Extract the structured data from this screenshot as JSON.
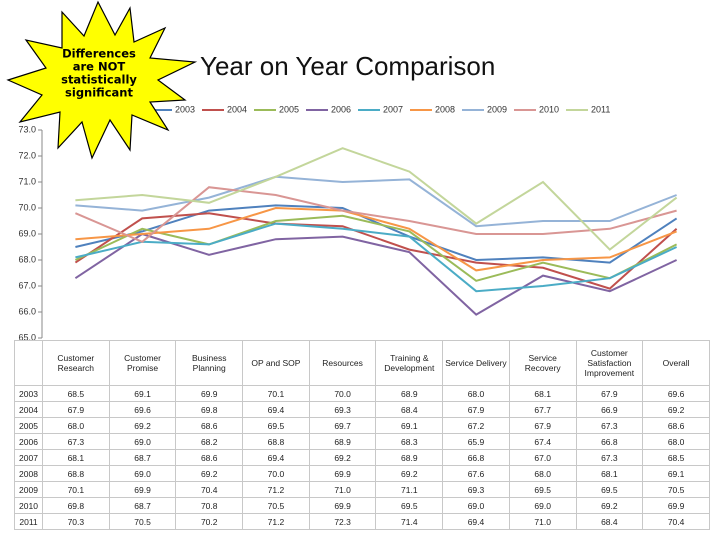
{
  "note": [
    "Differences",
    "are NOT",
    "statistically",
    "significant"
  ],
  "chart_data": {
    "type": "line",
    "title": "Year on Year Comparison",
    "categories": [
      "Customer Research",
      "Customer Promise",
      "Business Planning",
      "OP and SOP",
      "Resources",
      "Training & Development",
      "Service Delivery",
      "Service Recovery",
      "Customer Satisfaction Improvement",
      "Overall"
    ],
    "ylim": [
      65,
      73
    ],
    "yticks": [
      {
        "value": 65,
        "label": "65.0"
      },
      {
        "value": 66,
        "label": "66.0"
      },
      {
        "value": 67,
        "label": "67.0"
      },
      {
        "value": 68,
        "label": "68.0"
      },
      {
        "value": 69,
        "label": "69.0"
      },
      {
        "value": 70,
        "label": "70.0"
      },
      {
        "value": 71,
        "label": "71.0"
      },
      {
        "value": 72,
        "label": "72.0"
      },
      {
        "value": 73,
        "label": "73.0"
      }
    ],
    "grid": false,
    "legend": "top",
    "series": [
      {
        "name": "2003",
        "color": "#4f81bd",
        "values": [
          68.5,
          69.1,
          69.9,
          70.1,
          70.0,
          68.9,
          68.0,
          68.1,
          67.9,
          69.6
        ],
        "value_labels": [
          "68.5",
          "69.1",
          "69.9",
          "70.1",
          "70.0",
          "68.9",
          "68.0",
          "68.1",
          "67.9",
          "69.6"
        ]
      },
      {
        "name": "2004",
        "color": "#c0504d",
        "values": [
          67.9,
          69.6,
          69.8,
          69.4,
          69.3,
          68.4,
          67.9,
          67.7,
          66.9,
          69.2
        ],
        "value_labels": [
          "67.9",
          "69.6",
          "69.8",
          "69.4",
          "69.3",
          "68.4",
          "67.9",
          "67.7",
          "66.9",
          "69.2"
        ]
      },
      {
        "name": "2005",
        "color": "#9bbb59",
        "values": [
          68.0,
          69.2,
          68.6,
          69.5,
          69.7,
          69.1,
          67.2,
          67.9,
          67.3,
          68.6
        ],
        "value_labels": [
          "68.0",
          "69.2",
          "68.6",
          "69.5",
          "69.7",
          "69.1",
          "67.2",
          "67.9",
          "67.3",
          "68.6"
        ]
      },
      {
        "name": "2006",
        "color": "#8064a2",
        "values": [
          67.3,
          69.0,
          68.2,
          68.8,
          68.9,
          68.3,
          65.9,
          67.4,
          66.8,
          68.0
        ],
        "value_labels": [
          "67.3",
          "69.0",
          "68.2",
          "68.8",
          "68.9",
          "68.3",
          "65.9",
          "67.4",
          "66.8",
          "68.0"
        ]
      },
      {
        "name": "2007",
        "color": "#4bacc6",
        "values": [
          68.1,
          68.7,
          68.6,
          69.4,
          69.2,
          68.9,
          66.8,
          67.0,
          67.3,
          68.5
        ],
        "value_labels": [
          "68.1",
          "68.7",
          "68.6",
          "69.4",
          "69.2",
          "68.9",
          "66.8",
          "67.0",
          "67.3",
          "68.5"
        ]
      },
      {
        "name": "2008",
        "color": "#f79646",
        "values": [
          68.8,
          69.0,
          69.2,
          70.0,
          69.9,
          69.2,
          67.6,
          68.0,
          68.1,
          69.1
        ],
        "value_labels": [
          "68.8",
          "69.0",
          "69.2",
          "70.0",
          "69.9",
          "69.2",
          "67.6",
          "68.0",
          "68.1",
          "69.1"
        ]
      },
      {
        "name": "2009",
        "color": "#95b3d7",
        "values": [
          70.1,
          69.9,
          70.4,
          71.2,
          71.0,
          71.1,
          69.3,
          69.5,
          69.5,
          70.5
        ],
        "value_labels": [
          "70.1",
          "69.9",
          "70.4",
          "71.2",
          "71.0",
          "71.1",
          "69.3",
          "69.5",
          "69.5",
          "70.5"
        ]
      },
      {
        "name": "2010",
        "color": "#d99694",
        "values": [
          69.8,
          68.7,
          70.8,
          70.5,
          69.9,
          69.5,
          69.0,
          69.0,
          69.2,
          69.9
        ],
        "value_labels": [
          "69.8",
          "68.7",
          "70.8",
          "70.5",
          "69.9",
          "69.5",
          "69.0",
          "69.0",
          "69.2",
          "69.9"
        ]
      },
      {
        "name": "2011",
        "color": "#c3d69b",
        "values": [
          70.3,
          70.5,
          70.2,
          71.2,
          72.3,
          71.4,
          69.4,
          71.0,
          68.4,
          70.4
        ],
        "value_labels": [
          "70.3",
          "70.5",
          "70.2",
          "71.2",
          "72.3",
          "71.4",
          "69.4",
          "71.0",
          "68.4",
          "70.4"
        ]
      }
    ]
  }
}
